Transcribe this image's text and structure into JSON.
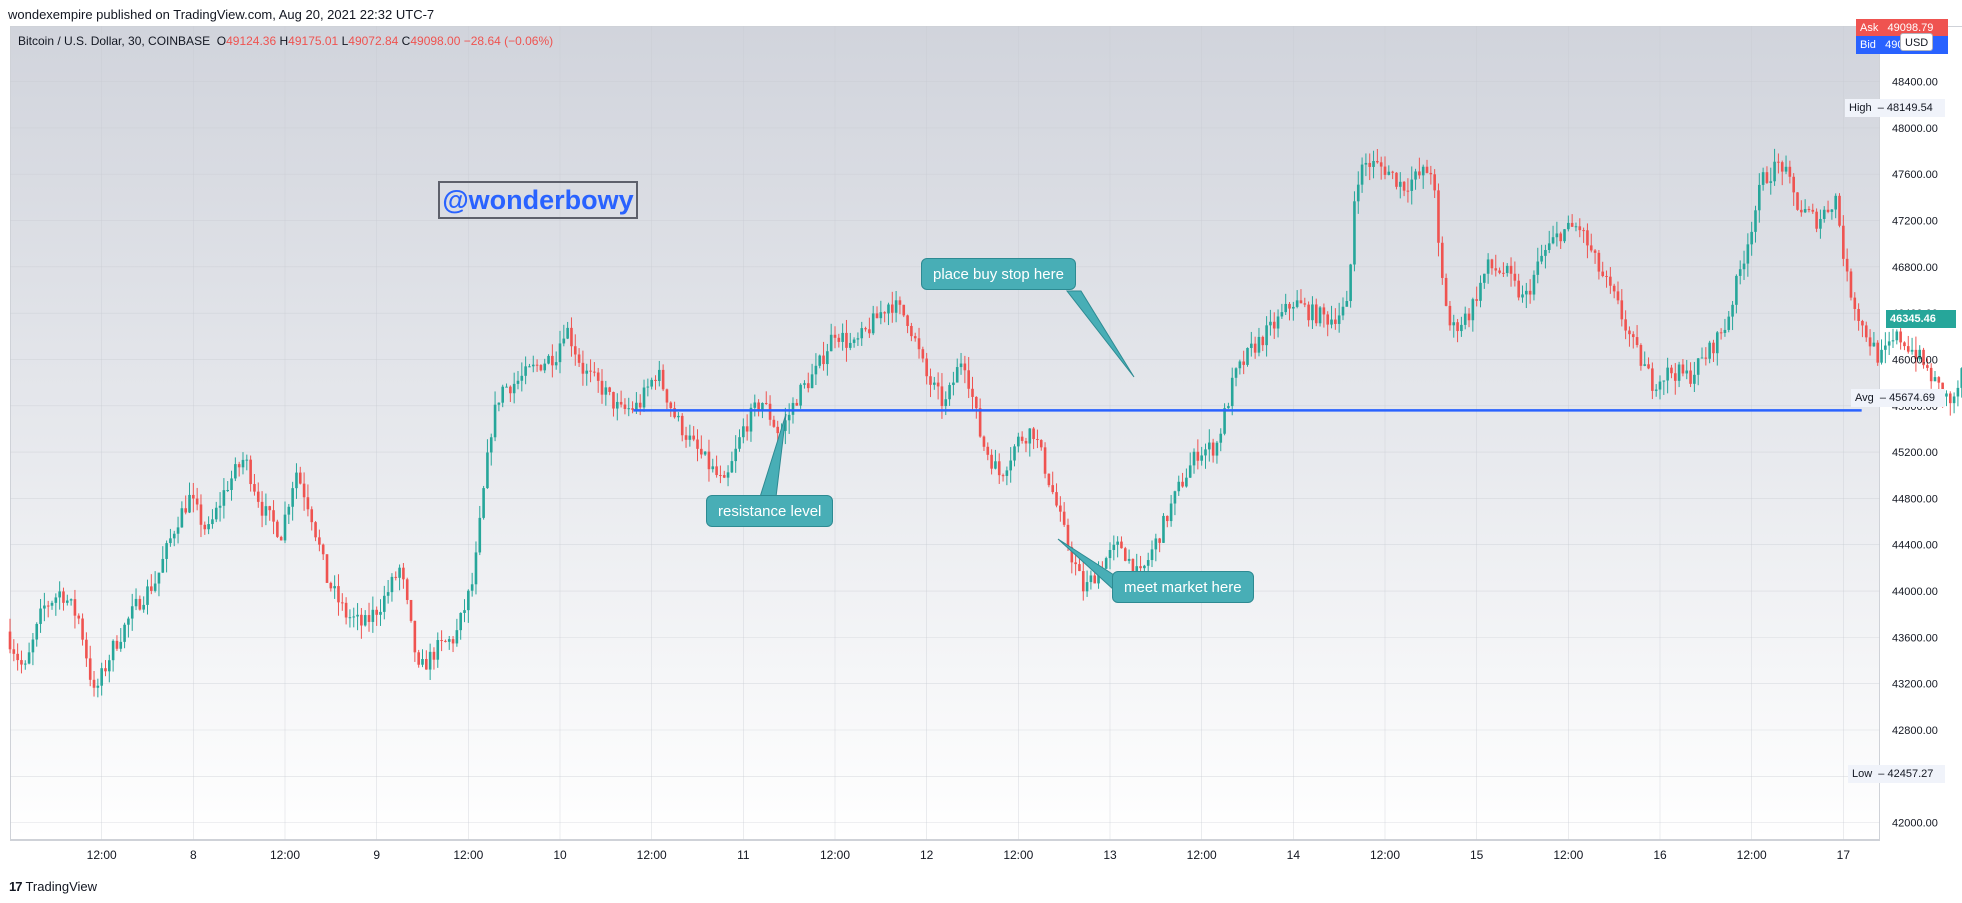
{
  "publisher": "wondexempire published on TradingView.com, Aug 20, 2021 22:32 UTC-7",
  "legend": {
    "symbol": "Bitcoin / U.S. Dollar, 30, COINBASE",
    "o_label": "O",
    "o_value": "49124.36",
    "h_label": "H",
    "h_value": "49175.01",
    "l_label": "L",
    "l_value": "49072.84",
    "c_label": "C",
    "c_value": "49098.00",
    "change": "−28.64 (−0.06%)"
  },
  "watermark": "@wonderbowy",
  "callouts": {
    "buy_stop": "place buy stop here",
    "resistance": "resistance level",
    "meet_market": "meet market here"
  },
  "price_tags": {
    "ask_label": "Ask",
    "ask_value": "49098.79",
    "bid_label": "Bid",
    "bid_value": "49097.29",
    "currency": "USD",
    "high_label": "High",
    "high_value": "48149.54",
    "last_value": "46345.46",
    "avg_label": "Avg",
    "avg_value": "45674.69",
    "low_label": "Low",
    "low_value": "42457.27"
  },
  "footer_brand": "TradingView",
  "colors": {
    "up": "#26a69a",
    "down": "#ef5350",
    "line": "#2962ff",
    "callout": "#48aeb6"
  },
  "chart_data": {
    "type": "candlestick",
    "symbol": "BTCUSD",
    "interval": "30",
    "y_ticks": [
      42000,
      42400,
      42800,
      43200,
      43600,
      44000,
      44400,
      44800,
      45200,
      45600,
      46000,
      46400,
      46800,
      47200,
      47600,
      48000,
      48400
    ],
    "y_tick_labels": [
      "42000.00",
      "42400.00",
      "42800.00",
      "43200.00",
      "43600.00",
      "44000.00",
      "44400.00",
      "44800.00",
      "45200.00",
      "45600.00",
      "46000.00",
      "46400.00",
      "46800.00",
      "47200.00",
      "47600.00",
      "48000.00",
      "48400.00"
    ],
    "ylim": [
      41850,
      48880
    ],
    "x_range_days": [
      0,
      10.2
    ],
    "x_ticks": [
      {
        "label": "12:00",
        "day": 0.5
      },
      {
        "label": "8",
        "day": 1
      },
      {
        "label": "12:00",
        "day": 1.5
      },
      {
        "label": "9",
        "day": 2
      },
      {
        "label": "12:00",
        "day": 2.5
      },
      {
        "label": "10",
        "day": 3
      },
      {
        "label": "12:00",
        "day": 3.5
      },
      {
        "label": "11",
        "day": 4
      },
      {
        "label": "12:00",
        "day": 4.5
      },
      {
        "label": "12",
        "day": 5
      },
      {
        "label": "12:00",
        "day": 5.5
      },
      {
        "label": "13",
        "day": 6
      },
      {
        "label": "12:00",
        "day": 6.5
      },
      {
        "label": "14",
        "day": 7
      },
      {
        "label": "12:00",
        "day": 7.5
      },
      {
        "label": "15",
        "day": 8
      },
      {
        "label": "12:00",
        "day": 8.5
      },
      {
        "label": "16",
        "day": 9
      },
      {
        "label": "12:00",
        "day": 9.5
      },
      {
        "label": "17",
        "day": 10
      }
    ],
    "price_path": [
      [
        0.0,
        43650
      ],
      [
        0.1,
        43300
      ],
      [
        0.2,
        43850
      ],
      [
        0.3,
        44000
      ],
      [
        0.4,
        43750
      ],
      [
        0.48,
        43100
      ],
      [
        0.58,
        43500
      ],
      [
        0.72,
        43900
      ],
      [
        0.82,
        44100
      ],
      [
        0.93,
        44600
      ],
      [
        1.0,
        44800
      ],
      [
        1.1,
        44500
      ],
      [
        1.2,
        44900
      ],
      [
        1.3,
        45150
      ],
      [
        1.4,
        44700
      ],
      [
        1.5,
        44500
      ],
      [
        1.58,
        45050
      ],
      [
        1.66,
        44700
      ],
      [
        1.75,
        44100
      ],
      [
        1.85,
        43800
      ],
      [
        1.95,
        43700
      ],
      [
        2.05,
        43900
      ],
      [
        2.15,
        44200
      ],
      [
        2.25,
        43300
      ],
      [
        2.35,
        43500
      ],
      [
        2.45,
        43600
      ],
      [
        2.55,
        44100
      ],
      [
        2.6,
        44800
      ],
      [
        2.65,
        45450
      ],
      [
        2.7,
        45750
      ],
      [
        2.78,
        45800
      ],
      [
        2.9,
        45950
      ],
      [
        3.0,
        46050
      ],
      [
        3.05,
        46300
      ],
      [
        3.15,
        45900
      ],
      [
        3.25,
        45750
      ],
      [
        3.35,
        45550
      ],
      [
        3.45,
        45600
      ],
      [
        3.55,
        45900
      ],
      [
        3.65,
        45500
      ],
      [
        3.75,
        45250
      ],
      [
        3.85,
        45050
      ],
      [
        3.92,
        44900
      ],
      [
        4.02,
        45400
      ],
      [
        4.12,
        45650
      ],
      [
        4.22,
        45350
      ],
      [
        4.32,
        45700
      ],
      [
        4.42,
        45900
      ],
      [
        4.52,
        46250
      ],
      [
        4.62,
        46100
      ],
      [
        4.72,
        46300
      ],
      [
        4.82,
        46500
      ],
      [
        4.92,
        46350
      ],
      [
        5.02,
        45850
      ],
      [
        5.12,
        45600
      ],
      [
        5.22,
        46050
      ],
      [
        5.32,
        45300
      ],
      [
        5.42,
        45000
      ],
      [
        5.52,
        45300
      ],
      [
        5.6,
        45400
      ],
      [
        5.7,
        44900
      ],
      [
        5.78,
        44450
      ],
      [
        5.88,
        44000
      ],
      [
        5.98,
        44250
      ],
      [
        6.08,
        44400
      ],
      [
        6.18,
        44100
      ],
      [
        6.28,
        44450
      ],
      [
        6.4,
        44900
      ],
      [
        6.5,
        45200
      ],
      [
        6.6,
        45250
      ],
      [
        6.7,
        45850
      ],
      [
        6.8,
        46100
      ],
      [
        6.92,
        46300
      ],
      [
        7.02,
        46500
      ],
      [
        7.12,
        46400
      ],
      [
        7.22,
        46350
      ],
      [
        7.32,
        46450
      ],
      [
        7.36,
        47550
      ],
      [
        7.42,
        47700
      ],
      [
        7.52,
        47650
      ],
      [
        7.62,
        47500
      ],
      [
        7.72,
        47600
      ],
      [
        7.78,
        47650
      ],
      [
        7.82,
        46800
      ],
      [
        7.88,
        46250
      ],
      [
        7.98,
        46400
      ],
      [
        8.08,
        46800
      ],
      [
        8.18,
        46750
      ],
      [
        8.28,
        46500
      ],
      [
        8.38,
        46900
      ],
      [
        8.48,
        47100
      ],
      [
        8.58,
        47150
      ],
      [
        8.68,
        46800
      ],
      [
        8.78,
        46500
      ],
      [
        8.88,
        46100
      ],
      [
        8.98,
        45800
      ],
      [
        9.08,
        45900
      ],
      [
        9.18,
        45850
      ],
      [
        9.28,
        46050
      ],
      [
        9.38,
        46300
      ],
      [
        9.48,
        46900
      ],
      [
        9.58,
        47550
      ],
      [
        9.68,
        47700
      ],
      [
        9.78,
        47300
      ],
      [
        9.88,
        47200
      ],
      [
        9.98,
        47400
      ],
      [
        10.04,
        46700
      ],
      [
        10.12,
        46300
      ],
      [
        10.22,
        46000
      ],
      [
        10.32,
        46200
      ],
      [
        10.42,
        46050
      ],
      [
        10.52,
        45800
      ],
      [
        10.62,
        45600
      ],
      [
        10.72,
        46200
      ],
      [
        10.8,
        45900
      ],
      [
        10.88,
        46300
      ],
      [
        10.95,
        46345
      ]
    ],
    "horizontal_line": {
      "price": 45560,
      "from_day": 3.4,
      "to_day": 10.1,
      "color": "#2962ff"
    },
    "high": 48149.54,
    "low": 42457.27,
    "avg": 45674.69,
    "last": 46345.46,
    "grid": true
  }
}
